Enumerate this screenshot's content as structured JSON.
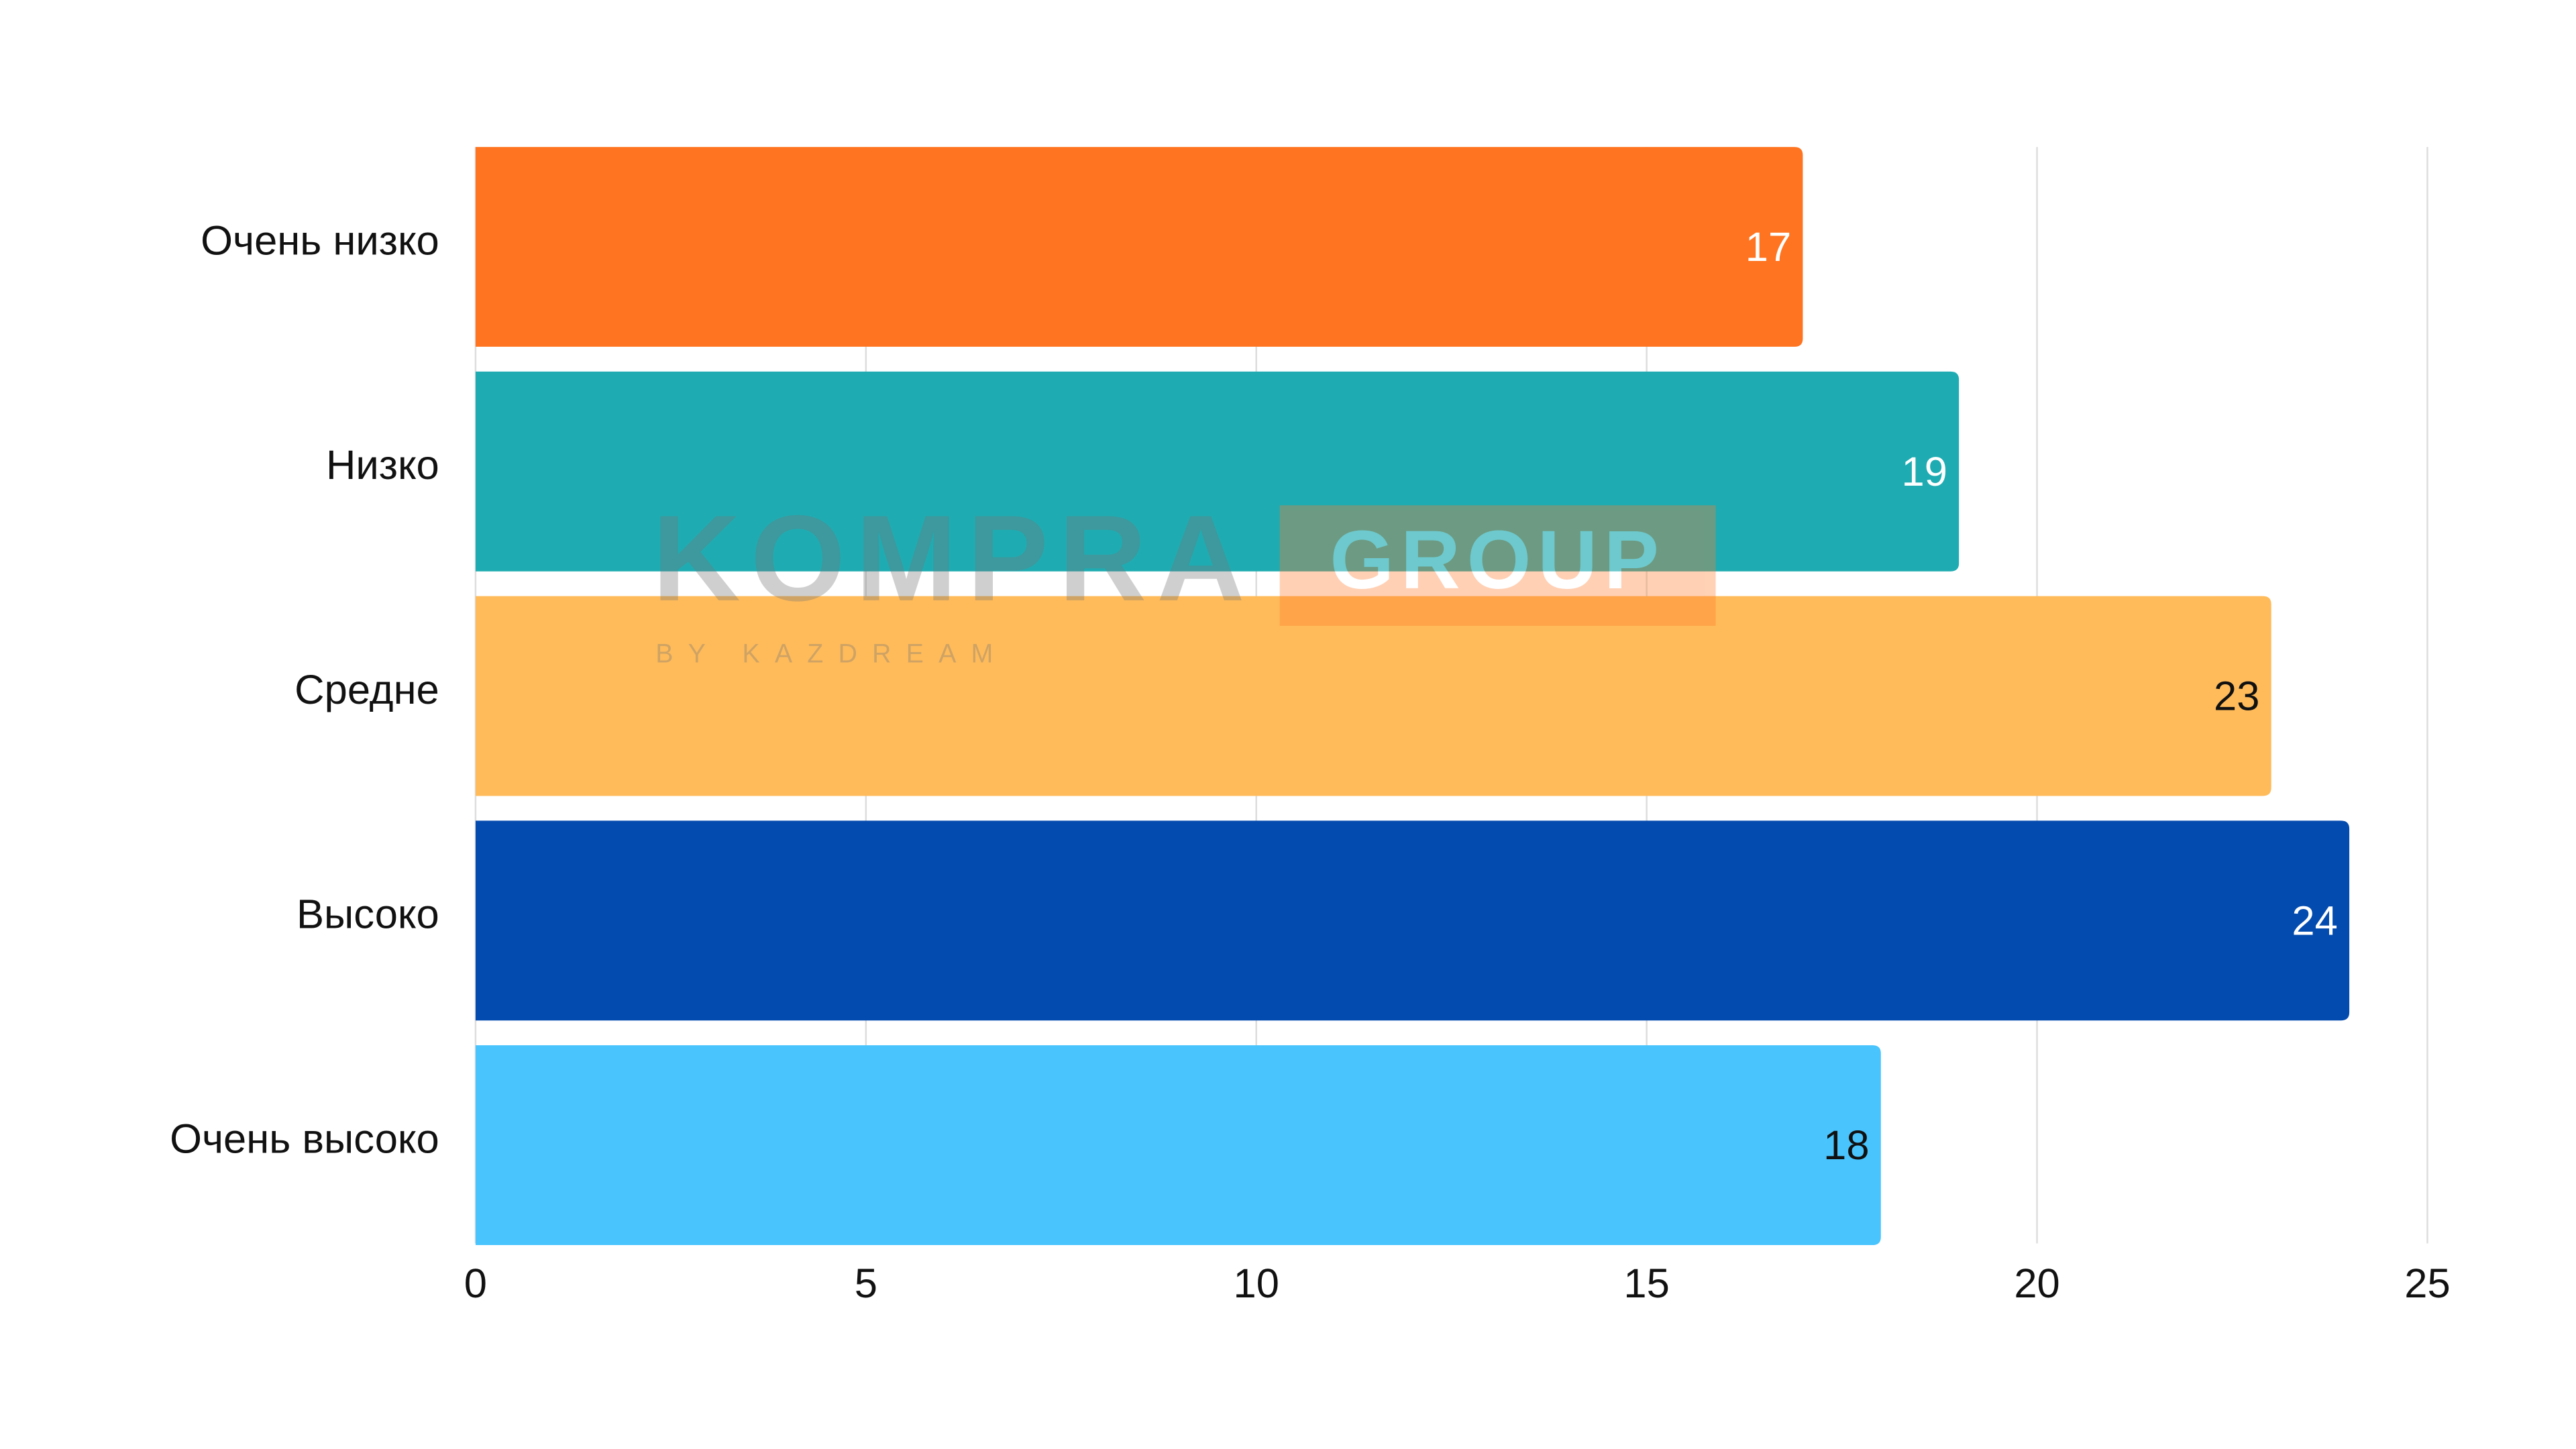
{
  "chart_data": {
    "type": "barh",
    "categories": [
      "Очень низко",
      "Низко",
      "Средне",
      "Высоко",
      "Очень высоко"
    ],
    "values": [
      17,
      19,
      23,
      24,
      18
    ],
    "colors": [
      "#ff7420",
      "#1eacb2",
      "#ffbb5a",
      "#034baf",
      "#49c4fd"
    ],
    "label_colors": [
      "#ffffff",
      "#ffffff",
      "#111111",
      "#ffffff",
      "#111111"
    ],
    "xlim": [
      0,
      25
    ],
    "xticks": [
      0,
      5,
      10,
      15,
      20,
      25
    ],
    "grid": true
  },
  "watermark": {
    "brand": "KOMPRA",
    "badge": "GROUP",
    "sub": "BY KAZDREAM"
  }
}
